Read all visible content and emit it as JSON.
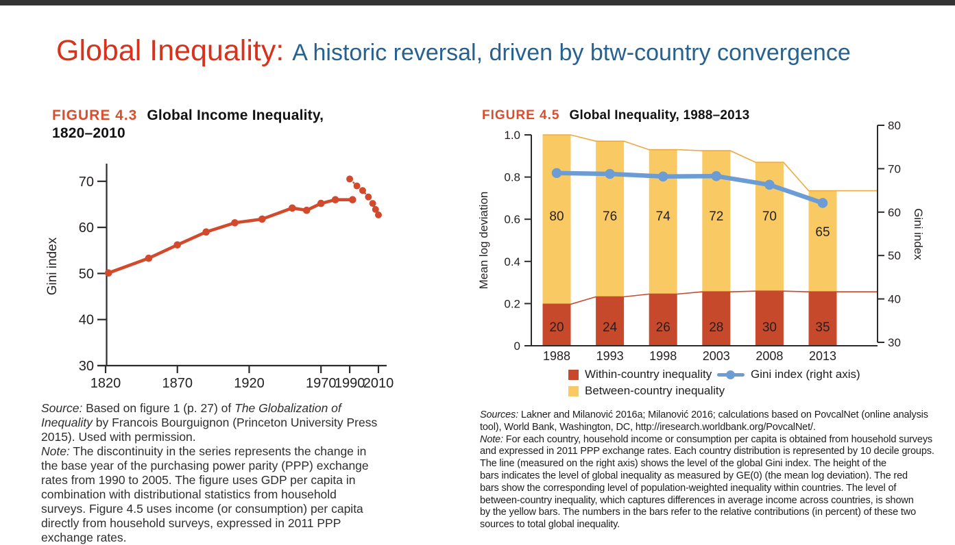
{
  "slide": {
    "top_bar_color": "#333333",
    "title": {
      "emphasis": "Global Inequality:",
      "rest": "A historic reversal, driven by btw-country convergence",
      "emphasis_color": "#D8311C",
      "rest_color": "#27618F"
    }
  },
  "figure43": {
    "label": "FIGURE 4.3",
    "title_line1": "Global Income Inequality,",
    "title_line2": "1820–2010",
    "note_lines": [
      [
        {
          "i": true,
          "t": "Source:"
        },
        {
          "t": " Based on figure 1 (p. 27) of "
        },
        {
          "i": true,
          "t": "The Globalization of"
        }
      ],
      [
        {
          "i": true,
          "t": "Inequality"
        },
        {
          "t": " by Francois Bourguignon (Princeton University Press"
        }
      ],
      [
        {
          "t": "2015). Used with permission."
        }
      ],
      [
        {
          "i": true,
          "t": "Note:"
        },
        {
          "t": " The discontinuity in the series represents the change in"
        }
      ],
      [
        {
          "t": "the base year of the purchasing power parity (PPP) exchange"
        }
      ],
      [
        {
          "t": "rates from 1990 to 2005. The figure uses GDP per capita in"
        }
      ],
      [
        {
          "t": "combination with distributional statistics from household"
        }
      ],
      [
        {
          "t": "surveys. Figure 4.5 uses income (or consumption) per capita"
        }
      ],
      [
        {
          "t": "directly from household surveys, expressed in 2011 PPP"
        }
      ],
      [
        {
          "t": "exchange rates."
        }
      ]
    ]
  },
  "figure45": {
    "label": "FIGURE 4.5",
    "title": "Global Inequality, 1988–2013",
    "note_lines": [
      [
        {
          "i": true,
          "t": "Sources:"
        },
        {
          "t": " Lakner and Milanović 2016a; Milanović 2016; calculations based on PovcalNet (online analysis"
        }
      ],
      [
        {
          "t": "tool), World Bank, Washington, DC, http://iresearch.worldbank.org/PovcalNet/."
        }
      ],
      [
        {
          "i": true,
          "t": "Note:"
        },
        {
          "t": " For each country, household income or consumption per capita is obtained from household surveys"
        }
      ],
      [
        {
          "t": "and expressed in 2011 PPP exchange rates. Each country distribution is represented by 10 decile groups."
        }
      ],
      [
        {
          "t": "The line (measured on the right axis) shows the level of the global Gini index. The height of the"
        }
      ],
      [
        {
          "t": "bars indicates the level of global inequality as measured by GE(0) (the mean log deviation). The red"
        }
      ],
      [
        {
          "t": "bars show the corresponding level of population-weighted inequality within countries. The level of"
        }
      ],
      [
        {
          "t": "between-country inequality, which captures differences in average income across countries, is shown"
        }
      ],
      [
        {
          "t": "by the yellow bars. The numbers in the bars refer to the relative contributions (in percent) of these two"
        }
      ],
      [
        {
          "t": "sources to total global inequality."
        }
      ]
    ]
  },
  "chart_data": [
    {
      "id": "figure-4-3",
      "type": "line",
      "title": "Global Income Inequality, 1820–2010",
      "xlabel": "",
      "ylabel": "Gini index",
      "xlim": [
        1814,
        2016
      ],
      "ylim": [
        30,
        73
      ],
      "x_ticks": [
        1820,
        1870,
        1920,
        1970,
        1990,
        2010
      ],
      "y_ticks": [
        30,
        40,
        50,
        60,
        70
      ],
      "grid": false,
      "line_color": "#D2492B",
      "series": [
        {
          "name": "Gini index (solid segment)",
          "style": "solid",
          "points": [
            [
              1822,
              50.1
            ],
            [
              1850,
              53.3
            ],
            [
              1870,
              56.2
            ],
            [
              1890,
              59.0
            ],
            [
              1910,
              61.0
            ],
            [
              1929,
              61.8
            ],
            [
              1950,
              64.2
            ],
            [
              1960,
              63.7
            ],
            [
              1970,
              65.2
            ],
            [
              1980,
              66.0
            ],
            [
              1992,
              66.0
            ]
          ]
        },
        {
          "name": "Gini index (dotted segment after PPP base change)",
          "style": "dotted",
          "points": [
            [
              1990,
              70.5
            ],
            [
              1995,
              69.0
            ],
            [
              1999,
              68.0
            ],
            [
              2003,
              66.6
            ],
            [
              2006,
              65.2
            ],
            [
              2008,
              63.9
            ],
            [
              2010,
              62.7
            ]
          ]
        }
      ]
    },
    {
      "id": "figure-4-5",
      "type": "bar+line",
      "title": "Global Inequality, 1988–2013",
      "categories": [
        "1988",
        "1993",
        "1998",
        "2003",
        "2008",
        "2013"
      ],
      "left_axis": {
        "label": "Mean log deviation",
        "ticks": [
          0,
          0.2,
          0.4,
          0.6,
          0.8,
          1.0
        ],
        "range": [
          0,
          1.0
        ]
      },
      "right_axis": {
        "label": "Gini index",
        "ticks": [
          30,
          40,
          50,
          60,
          70,
          80
        ],
        "range": [
          30,
          80
        ]
      },
      "bars": {
        "within": {
          "legend": "Within-country inequality",
          "color": "#C7492C",
          "values": [
            0.197,
            0.232,
            0.245,
            0.256,
            0.259,
            0.256
          ],
          "labels": [
            "20",
            "24",
            "26",
            "28",
            "30",
            "35"
          ]
        },
        "between": {
          "legend": "Between-country inequality",
          "color": "#F9CA64",
          "edge_color": "#ECA93F",
          "totals": [
            1.0,
            0.97,
            0.93,
            0.925,
            0.87,
            0.735
          ],
          "labels": [
            "80",
            "76",
            "74",
            "72",
            "70",
            "65"
          ]
        }
      },
      "gini_line": {
        "legend": "Gini index (right axis)",
        "color": "#6B9DD4",
        "values": [
          69.0,
          68.8,
          68.2,
          68.3,
          66.3,
          62.1
        ]
      }
    }
  ]
}
